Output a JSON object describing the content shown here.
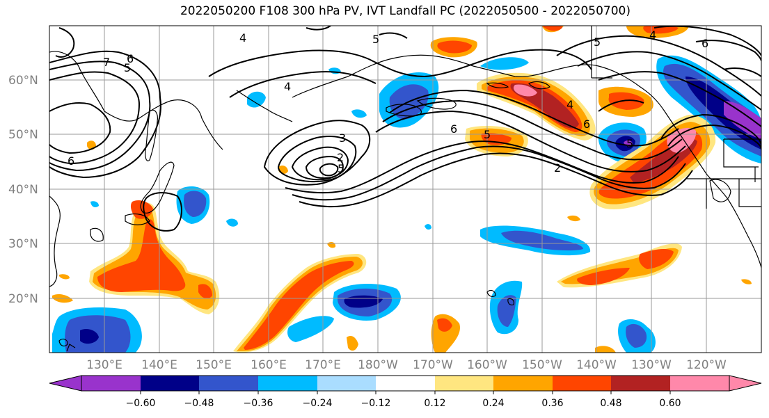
{
  "title": "2022050200 F108 300 hPa PV, IVT Landfall PC (2022050500 - 2022050700)",
  "lat_labels": [
    "60°N",
    "50°N",
    "40°N",
    "30°N",
    "20°N"
  ],
  "lon_labels": [
    "130°E",
    "140°E",
    "150°E",
    "160°E",
    "170°E",
    "180°W",
    "170°W",
    "160°W",
    "150°W",
    "140°W",
    "130°W",
    "120°W"
  ],
  "contour_labels": [
    "7",
    "6",
    "5",
    "4",
    "5",
    "4",
    "3",
    "2",
    "5",
    "6",
    "5",
    "4",
    "6",
    "5",
    "4",
    "5",
    "6",
    "2",
    "6"
  ],
  "colorbar": {
    "colors": [
      "#9933cc",
      "#000088",
      "#3355cc",
      "#00bbff",
      "#aaddff",
      "#ffffff",
      "#ffe680",
      "#ffa500",
      "#ff4500",
      "#b22222",
      "#ff88aa"
    ],
    "ticks": [
      "−0.60",
      "−0.48",
      "−0.36",
      "−0.24",
      "−0.12",
      "0.12",
      "0.24",
      "0.36",
      "0.48",
      "0.60"
    ]
  }
}
